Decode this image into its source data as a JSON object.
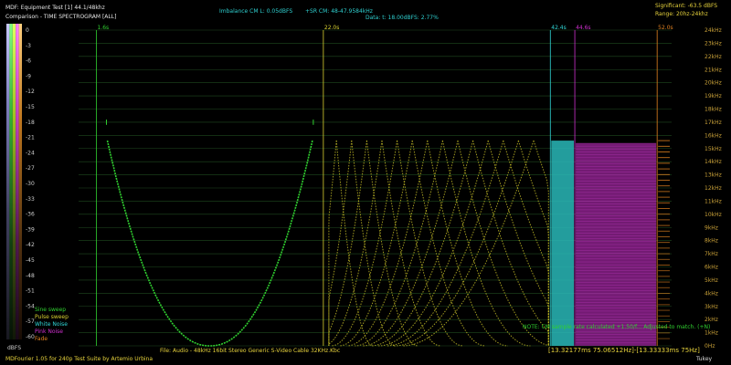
{
  "header": {
    "line1": "MDF: Equipment Test [1] 44.1/48khz",
    "line2": "Comparison - TIME SPECTROGRAM [ALL]",
    "imbalance": "Imbalance CM L: 0.05dBFS",
    "sr_cm": "+SR CM: 48-47.9584kHz",
    "data": "Data: t: 18.00dBFS: 2.77%",
    "significant": "Significant: -63.5 dBFS",
    "range": "Range: 20hz-24khz"
  },
  "colorbar": {
    "unit": "dBFS",
    "ticks": [
      "0",
      "-3",
      "-6",
      "-9",
      "-12",
      "-15",
      "-18",
      "-21",
      "-24",
      "-27",
      "-30",
      "-33",
      "-36",
      "-39",
      "-42",
      "-45",
      "-48",
      "-51",
      "-54",
      "-57",
      "-60"
    ]
  },
  "legend": [
    {
      "label": "Sine sweep",
      "color": "#30d030"
    },
    {
      "label": "Pulse sweep",
      "color": "#d8d030"
    },
    {
      "label": "White Noise",
      "color": "#30d8d8"
    },
    {
      "label": "Pink Noise",
      "color": "#d030d0"
    },
    {
      "label": "Fade",
      "color": "#e08020"
    }
  ],
  "chart_data": {
    "type": "heatmap",
    "title": "Comparison - TIME SPECTROGRAM [ALL]",
    "x_markers": [
      "1.6s",
      "22.0s",
      "42.4s",
      "44.6s",
      "52.0s"
    ],
    "y_ticks": [
      "24kHz",
      "23kHz",
      "22kHz",
      "21kHz",
      "20kHz",
      "19kHz",
      "18kHz",
      "17kHz",
      "16kHz",
      "15kHz",
      "14kHz",
      "13kHz",
      "12kHz",
      "11kHz",
      "10kHz",
      "9kHz",
      "8kHz",
      "7kHz",
      "6kHz",
      "5kHz",
      "4kHz",
      "3kHz",
      "2kHz",
      "1kHz",
      "0Hz"
    ],
    "y_range_hz": [
      0,
      24000
    ],
    "segments": [
      {
        "name": "Sine sweep",
        "start_s": 1.6,
        "end_s": 22.0,
        "color": "#30d030"
      },
      {
        "name": "Pulse sweep",
        "start_s": 22.0,
        "end_s": 42.4,
        "color": "#d8d030"
      },
      {
        "name": "White Noise",
        "start_s": 42.4,
        "end_s": 44.6,
        "color": "#30d8d8"
      },
      {
        "name": "Pink Noise",
        "start_s": 44.6,
        "end_s": 52.0,
        "color": "#d030d0"
      },
      {
        "name": "Fade",
        "start_s": 52.0,
        "end_s": null,
        "color": "#e08020"
      }
    ],
    "grid": true,
    "window": "Tukey"
  },
  "note": "NOTE: CM sample rate calculated +1.50/f... Adjusted to match. (+N)",
  "footer": {
    "file": "File: Audio - 48kHz 16bit Stereo Generic S-Video Cable 32KHz.Kbc",
    "cursor": "[13.32177ms 75.06512Hz]-[13.33333ms 75Hz]",
    "window": "Tukey",
    "credit": "MDFourier 1.05 for 240p Test Suite by Artemio Urbina"
  }
}
